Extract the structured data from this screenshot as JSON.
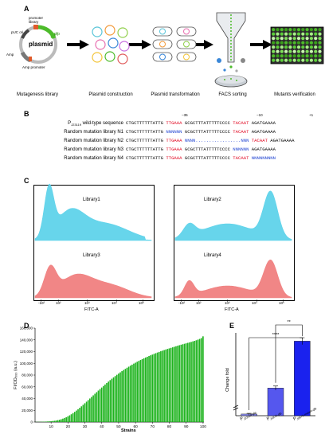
{
  "panelA": {
    "label": "A",
    "plasmid_text": "plasmid",
    "promoter_library_text": "promoter\nlibrary",
    "pUC_ori_text": "pUC ori",
    "gfp_text": "gfp",
    "ampr_text": "Amp",
    "ampr_promoter_text": "Amp promoter",
    "step_labels": [
      "Mutagenesis library",
      "Plasmid construction",
      "Plasmid transformation",
      "FACS sorting",
      "Mutants verification"
    ]
  },
  "panelB": {
    "label": "B",
    "pos_minus35": "−35",
    "pos_minus10": "−10",
    "pos_plus1": "+1",
    "rows": [
      {
        "label": "P",
        "sub": "J23119",
        "label_rest": " wild-type sequence",
        "seg1": "CTGCTTTTTTATTG ",
        "seg2": "TTGAAA",
        "seg3": " GCGCTTTATTTTTCCCC ",
        "seg4": "TACAAT",
        "seg5": " AGATGAAAA",
        "c2": "red",
        "c4": "red"
      },
      {
        "label": "Random mutation library N1",
        "sub": "",
        "label_rest": "",
        "seg1": "CTGCTTTTTTATTG ",
        "seg2": "NNNNNN",
        "seg3": " GCGCTTTATTTTTCCCC ",
        "seg4": "TACAAT",
        "seg5": " AGATGAAAA",
        "c2": "blue",
        "c4": "red"
      },
      {
        "label": "Random mutation library N2",
        "sub": "",
        "label_rest": "",
        "seg1": "CTGCTTTTTTATTG ",
        "seg2": "TTGAAA",
        "seg3": " NNNN.................NNN ",
        "seg4": "TACAAT",
        "seg5": " AGATGAAAA",
        "c2": "red",
        "c4": "red"
      },
      {
        "label": "Random mutation library N3",
        "sub": "",
        "label_rest": "",
        "seg1": "CTGCTTTTTTATTG ",
        "seg2": "TTGAAA",
        "seg3": " GCGCTTTATTTTTCCCC ",
        "seg4": "NNNNNN",
        "seg5": " AGATGAAAA",
        "c2": "red",
        "c4": "blue"
      },
      {
        "label": "Random mutation library N4",
        "sub": "",
        "label_rest": "",
        "seg1": "CTGCTTTTTTATTG ",
        "seg2": "TTGAAA",
        "seg3": " GCGCTTTATTTTTCCCC ",
        "seg4": "TACAAT",
        "seg5": " NNNNNNNNN",
        "c2": "red",
        "c4": "red"
      }
    ]
  },
  "panelC": {
    "label": "C",
    "libraries": [
      "Library1",
      "Library2",
      "Library3",
      "Library4"
    ],
    "xlabel": "FITC-A",
    "tick_labels": [
      "-10²",
      "10²",
      "10³",
      "10⁴",
      "10⁵"
    ],
    "colors": {
      "blue": "#5fd3ea",
      "red": "#f08080"
    }
  },
  "panelD": {
    "label": "D",
    "ylabel": "FI/OD₆₀₀ (a.u.)",
    "xlabel": "Strains",
    "color": "#1db31d"
  },
  "panelE": {
    "label": "E",
    "ylabel": "Change fold",
    "sig1": "**",
    "sig2": "****",
    "categories": [
      "P",
      "P",
      "P"
    ],
    "category_subs": [
      "J23119-gfp",
      "J0876-gfp",
      "J0876-mutant-gfp"
    ],
    "colors": [
      "#8a8cf0",
      "#5557ee",
      "#1a22ee"
    ]
  },
  "chart_data": [
    {
      "type": "bar",
      "title": "",
      "xlabel": "Strains",
      "ylabel": "FI/OD600 (a.u.)",
      "xlim": [
        0,
        100
      ],
      "ylim": [
        0,
        160000
      ],
      "x_ticks": [
        10,
        20,
        30,
        40,
        50,
        60,
        70,
        80,
        90,
        100
      ],
      "y_ticks": [
        0,
        20000,
        40000,
        60000,
        80000,
        100000,
        120000,
        140000,
        160000
      ],
      "y_tick_labels": [
        "0",
        "20,000",
        "40,000",
        "60,000",
        "80,000",
        "100,000",
        "120,000",
        "140,000",
        "160,000"
      ],
      "x": [
        1,
        2,
        3,
        4,
        5,
        6,
        7,
        8,
        9,
        10,
        11,
        12,
        13,
        14,
        15,
        16,
        17,
        18,
        19,
        20,
        21,
        22,
        23,
        24,
        25,
        26,
        27,
        28,
        29,
        30,
        31,
        32,
        33,
        34,
        35,
        36,
        37,
        38,
        39,
        40,
        41,
        42,
        43,
        44,
        45,
        46,
        47,
        48,
        49,
        50,
        51,
        52,
        53,
        54,
        55,
        56,
        57,
        58,
        59,
        60,
        61,
        62,
        63,
        64,
        65,
        66,
        67,
        68,
        69,
        70,
        71,
        72,
        73,
        74,
        75,
        76,
        77,
        78,
        79,
        80,
        81,
        82,
        83,
        84,
        85,
        86,
        87,
        88,
        89,
        90,
        91,
        92,
        93,
        94,
        95,
        96,
        97,
        98,
        99,
        100
      ],
      "values": [
        200,
        250,
        300,
        400,
        500,
        600,
        800,
        1000,
        1200,
        1500,
        1800,
        2200,
        2700,
        3300,
        4000,
        4800,
        5800,
        7000,
        8300,
        9800,
        11500,
        13300,
        15300,
        17400,
        19600,
        21900,
        24300,
        26800,
        29400,
        32000,
        34700,
        37400,
        40100,
        42800,
        45500,
        48200,
        50900,
        53600,
        56200,
        58800,
        61400,
        64000,
        66500,
        69000,
        71400,
        73800,
        76100,
        78300,
        80500,
        82600,
        84700,
        86700,
        88700,
        90600,
        92500,
        94300,
        96100,
        97800,
        99500,
        101100,
        102700,
        104200,
        105700,
        107100,
        108500,
        109900,
        111200,
        112500,
        113700,
        114900,
        116100,
        117300,
        118400,
        119500,
        120600,
        121600,
        122600,
        123600,
        124600,
        125500,
        126400,
        127300,
        128200,
        129100,
        130000,
        130900,
        131700,
        132500,
        133300,
        134100,
        134900,
        135700,
        136500,
        137400,
        138300,
        139300,
        140400,
        141600,
        143000,
        146000
      ]
    },
    {
      "type": "bar",
      "title": "",
      "xlabel": "",
      "ylabel": "Change fold",
      "categories": [
        "PJ23119-gfp",
        "PJ0876-gfp",
        "PJ0876-mutant-gfp"
      ],
      "values": [
        1.2,
        20,
        54
      ],
      "errors": [
        0.5,
        1.5,
        2.5
      ],
      "ylim": [
        0,
        60
      ],
      "axis_break": true,
      "significance": [
        {
          "pair": [
            0,
            2
          ],
          "label": "****"
        },
        {
          "pair": [
            1,
            2
          ],
          "label": "**"
        }
      ]
    }
  ]
}
